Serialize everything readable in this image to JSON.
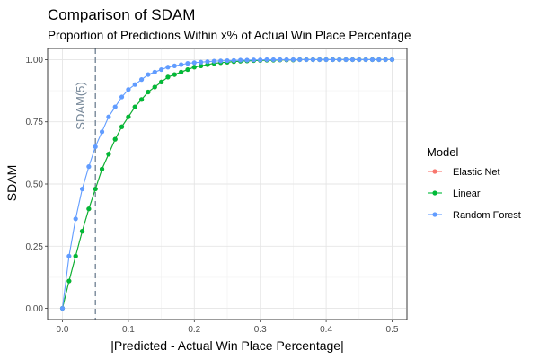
{
  "chart_data": {
    "type": "line",
    "title": "Comparison of SDAM",
    "subtitle": "Proportion of Predictions Within x% of Actual Win Place Percentage",
    "xlabel": "|Predicted - Actual Win Place Percentage|",
    "ylabel": "SDAM",
    "xlim": [
      0,
      0.5
    ],
    "ylim": [
      0,
      1
    ],
    "x_ticks": [
      0.0,
      0.1,
      0.2,
      0.3,
      0.4,
      0.5
    ],
    "x_tick_labels": [
      "0.0",
      "0.1",
      "0.2",
      "0.3",
      "0.4",
      "0.5"
    ],
    "y_ticks": [
      0.0,
      0.25,
      0.5,
      0.75,
      1.0
    ],
    "y_tick_labels": [
      "0.00",
      "0.25",
      "0.50",
      "0.75",
      "1.00"
    ],
    "grid": true,
    "legend": {
      "title": "Model",
      "position": "right"
    },
    "annotation": {
      "text": "SDAM(5)",
      "x": 0.05
    },
    "x": [
      0.0,
      0.01,
      0.02,
      0.03,
      0.04,
      0.05,
      0.06,
      0.07,
      0.08,
      0.09,
      0.1,
      0.11,
      0.12,
      0.13,
      0.14,
      0.15,
      0.16,
      0.17,
      0.18,
      0.19,
      0.2,
      0.21,
      0.22,
      0.23,
      0.24,
      0.25,
      0.26,
      0.27,
      0.28,
      0.29,
      0.3,
      0.31,
      0.32,
      0.33,
      0.34,
      0.35,
      0.36,
      0.37,
      0.38,
      0.39,
      0.4,
      0.41,
      0.42,
      0.43,
      0.44,
      0.45,
      0.46,
      0.47,
      0.48,
      0.49,
      0.5
    ],
    "series": [
      {
        "name": "Elastic Net",
        "color": "#F8766D",
        "values": [
          0.0,
          0.11,
          0.21,
          0.31,
          0.4,
          0.48,
          0.56,
          0.62,
          0.68,
          0.73,
          0.77,
          0.81,
          0.84,
          0.87,
          0.89,
          0.91,
          0.93,
          0.94,
          0.95,
          0.96,
          0.97,
          0.975,
          0.98,
          0.985,
          0.988,
          0.99,
          0.992,
          0.994,
          0.995,
          0.996,
          0.997,
          0.998,
          0.998,
          0.999,
          0.999,
          0.999,
          1.0,
          1.0,
          1.0,
          1.0,
          1.0,
          1.0,
          1.0,
          1.0,
          1.0,
          1.0,
          1.0,
          1.0,
          1.0,
          1.0,
          1.0
        ]
      },
      {
        "name": "Linear",
        "color": "#00BA38",
        "values": [
          0.0,
          0.11,
          0.21,
          0.31,
          0.4,
          0.48,
          0.56,
          0.62,
          0.68,
          0.73,
          0.77,
          0.81,
          0.84,
          0.87,
          0.89,
          0.91,
          0.93,
          0.94,
          0.95,
          0.96,
          0.97,
          0.975,
          0.98,
          0.985,
          0.988,
          0.99,
          0.992,
          0.994,
          0.995,
          0.996,
          0.997,
          0.998,
          0.998,
          0.999,
          0.999,
          0.999,
          1.0,
          1.0,
          1.0,
          1.0,
          1.0,
          1.0,
          1.0,
          1.0,
          1.0,
          1.0,
          1.0,
          1.0,
          1.0,
          1.0,
          1.0
        ]
      },
      {
        "name": "Random Forest",
        "color": "#619CFF",
        "values": [
          0.0,
          0.21,
          0.36,
          0.48,
          0.57,
          0.65,
          0.71,
          0.77,
          0.81,
          0.85,
          0.88,
          0.9,
          0.92,
          0.94,
          0.95,
          0.96,
          0.97,
          0.975,
          0.98,
          0.985,
          0.988,
          0.99,
          0.992,
          0.994,
          0.995,
          0.996,
          0.997,
          0.998,
          0.998,
          0.999,
          0.999,
          1.0,
          1.0,
          1.0,
          1.0,
          1.0,
          1.0,
          1.0,
          1.0,
          1.0,
          1.0,
          1.0,
          1.0,
          1.0,
          1.0,
          1.0,
          1.0,
          1.0,
          1.0,
          1.0,
          1.0
        ]
      }
    ]
  }
}
